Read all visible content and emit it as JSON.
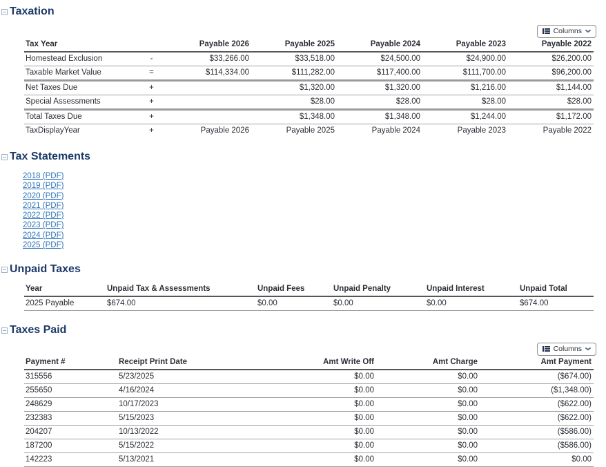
{
  "taxation": {
    "title": "Taxation",
    "columns_button_label": "Columns",
    "table": {
      "headers": [
        "Tax Year",
        "",
        "Payable 2026",
        "Payable 2025",
        "Payable 2024",
        "Payable 2023",
        "Payable 2022"
      ],
      "rows": [
        {
          "label": "Homestead Exclusion",
          "op": "-",
          "values": [
            "$33,266.00",
            "$33,518.00",
            "$24,500.00",
            "$24,900.00",
            "$26,200.00"
          ]
        },
        {
          "label": "Taxable Market Value",
          "op": "=",
          "values": [
            "$114,334.00",
            "$111,282.00",
            "$117,400.00",
            "$111,700.00",
            "$96,200.00"
          ]
        },
        {
          "label": "Net Taxes Due",
          "op": "+",
          "values": [
            "",
            "$1,320.00",
            "$1,320.00",
            "$1,216.00",
            "$1,144.00"
          ]
        },
        {
          "label": "Special Assessments",
          "op": "+",
          "values": [
            "",
            "$28.00",
            "$28.00",
            "$28.00",
            "$28.00"
          ]
        },
        {
          "label": "Total Taxes Due",
          "op": "+",
          "values": [
            "",
            "$1,348.00",
            "$1,348.00",
            "$1,244.00",
            "$1,172.00"
          ]
        },
        {
          "label": "TaxDisplayYear",
          "op": "+",
          "values": [
            "Payable 2026",
            "Payable 2025",
            "Payable 2024",
            "Payable 2023",
            "Payable 2022"
          ]
        }
      ]
    }
  },
  "tax_statements": {
    "title": "Tax Statements",
    "links": [
      "2018 (PDF)",
      "2019 (PDF)",
      "2020 (PDF)",
      "2021 (PDF)",
      "2022 (PDF)",
      "2023 (PDF)",
      "2024 (PDF)",
      "2025 (PDF)"
    ]
  },
  "unpaid_taxes": {
    "title": "Unpaid Taxes",
    "headers": [
      "Year",
      "Unpaid Tax & Assessments",
      "Unpaid Fees",
      "Unpaid Penalty",
      "Unpaid Interest",
      "Unpaid Total"
    ],
    "rows": [
      [
        "2025 Payable",
        "$674.00",
        "$0.00",
        "$0.00",
        "$0.00",
        "$674.00"
      ]
    ]
  },
  "taxes_paid": {
    "title": "Taxes Paid",
    "columns_button_label": "Columns",
    "headers": [
      "Payment #",
      "Receipt Print Date",
      "Amt Write Off",
      "Amt Charge",
      "Amt Payment"
    ],
    "rows": [
      [
        "315556",
        "5/23/2025",
        "$0.00",
        "$0.00",
        "($674.00)"
      ],
      [
        "255650",
        "4/16/2024",
        "$0.00",
        "$0.00",
        "($1,348.00)"
      ],
      [
        "248629",
        "10/17/2023",
        "$0.00",
        "$0.00",
        "($622.00)"
      ],
      [
        "232383",
        "5/15/2023",
        "$0.00",
        "$0.00",
        "($622.00)"
      ],
      [
        "204207",
        "10/13/2022",
        "$0.00",
        "$0.00",
        "($586.00)"
      ],
      [
        "187200",
        "5/15/2022",
        "$0.00",
        "$0.00",
        "($586.00)"
      ],
      [
        "142223",
        "5/13/2021",
        "$0.00",
        "$0.00",
        "$0.00"
      ]
    ]
  },
  "colors": {
    "heading": "#1b3a68",
    "link": "#2e74b8",
    "collapse_icon": "#9cb0ca"
  }
}
